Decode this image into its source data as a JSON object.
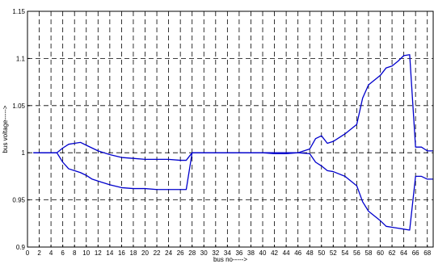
{
  "chart_data": {
    "type": "line",
    "title": "",
    "xlabel": "bus no----->",
    "ylabel": "bus voltage----->",
    "xlim": [
      0,
      69
    ],
    "ylim": [
      0.9,
      1.15
    ],
    "x_ticks": [
      0,
      2,
      4,
      6,
      8,
      10,
      12,
      14,
      16,
      18,
      20,
      22,
      24,
      26,
      28,
      30,
      32,
      34,
      36,
      38,
      40,
      42,
      44,
      46,
      48,
      50,
      52,
      54,
      56,
      58,
      60,
      62,
      64,
      66,
      68
    ],
    "y_ticks": [
      0.9,
      0.95,
      1,
      1.05,
      1.1,
      1.15
    ],
    "y_tick_labels": [
      "0.9",
      "0.95",
      "1",
      "1.05",
      "1.1",
      "1.15"
    ],
    "grid": true,
    "grid_style": "dashed",
    "line_color": "#0000cc",
    "series": [
      {
        "x": [
          1,
          5,
          6,
          7,
          8,
          9,
          10,
          11,
          12,
          14,
          16,
          18,
          20,
          22,
          24,
          26,
          27,
          28,
          30,
          32,
          34,
          36,
          38,
          40,
          42,
          44,
          46,
          48,
          49,
          50,
          51,
          52,
          54,
          56,
          57,
          58,
          60,
          61,
          62,
          63,
          64,
          65,
          66,
          67,
          68,
          69
        ],
        "y": [
          1.0,
          1.0,
          1.005,
          1.009,
          1.01,
          1.011,
          1.008,
          1.005,
          1.002,
          0.998,
          0.995,
          0.994,
          0.993,
          0.993,
          0.993,
          0.992,
          0.992,
          1.0,
          1.0,
          1.0,
          1.0,
          1.0,
          1.0,
          1.0,
          0.999,
          0.999,
          1.0,
          1.004,
          1.015,
          1.018,
          1.01,
          1.012,
          1.02,
          1.03,
          1.058,
          1.072,
          1.082,
          1.09,
          1.092,
          1.097,
          1.103,
          1.104,
          1.006,
          1.006,
          1.002,
          1.002
        ]
      },
      {
        "x": [
          1,
          5,
          6,
          7,
          8,
          9,
          10,
          11,
          12,
          14,
          16,
          18,
          20,
          22,
          24,
          26,
          27,
          28,
          30,
          32,
          34,
          36,
          38,
          40,
          42,
          44,
          46,
          48,
          49,
          50,
          51,
          52,
          54,
          56,
          57,
          58,
          60,
          61,
          62,
          63,
          64,
          65,
          66,
          67,
          68,
          69
        ],
        "y": [
          1.0,
          1.0,
          0.99,
          0.983,
          0.981,
          0.979,
          0.976,
          0.972,
          0.97,
          0.966,
          0.963,
          0.962,
          0.962,
          0.961,
          0.961,
          0.961,
          0.961,
          1.0,
          1.0,
          1.0,
          1.0,
          1.0,
          1.0,
          1.0,
          1.0,
          1.0,
          1.0,
          0.999,
          0.99,
          0.986,
          0.981,
          0.98,
          0.975,
          0.965,
          0.948,
          0.938,
          0.928,
          0.922,
          0.921,
          0.92,
          0.919,
          0.918,
          0.975,
          0.975,
          0.972,
          0.972
        ]
      }
    ]
  }
}
